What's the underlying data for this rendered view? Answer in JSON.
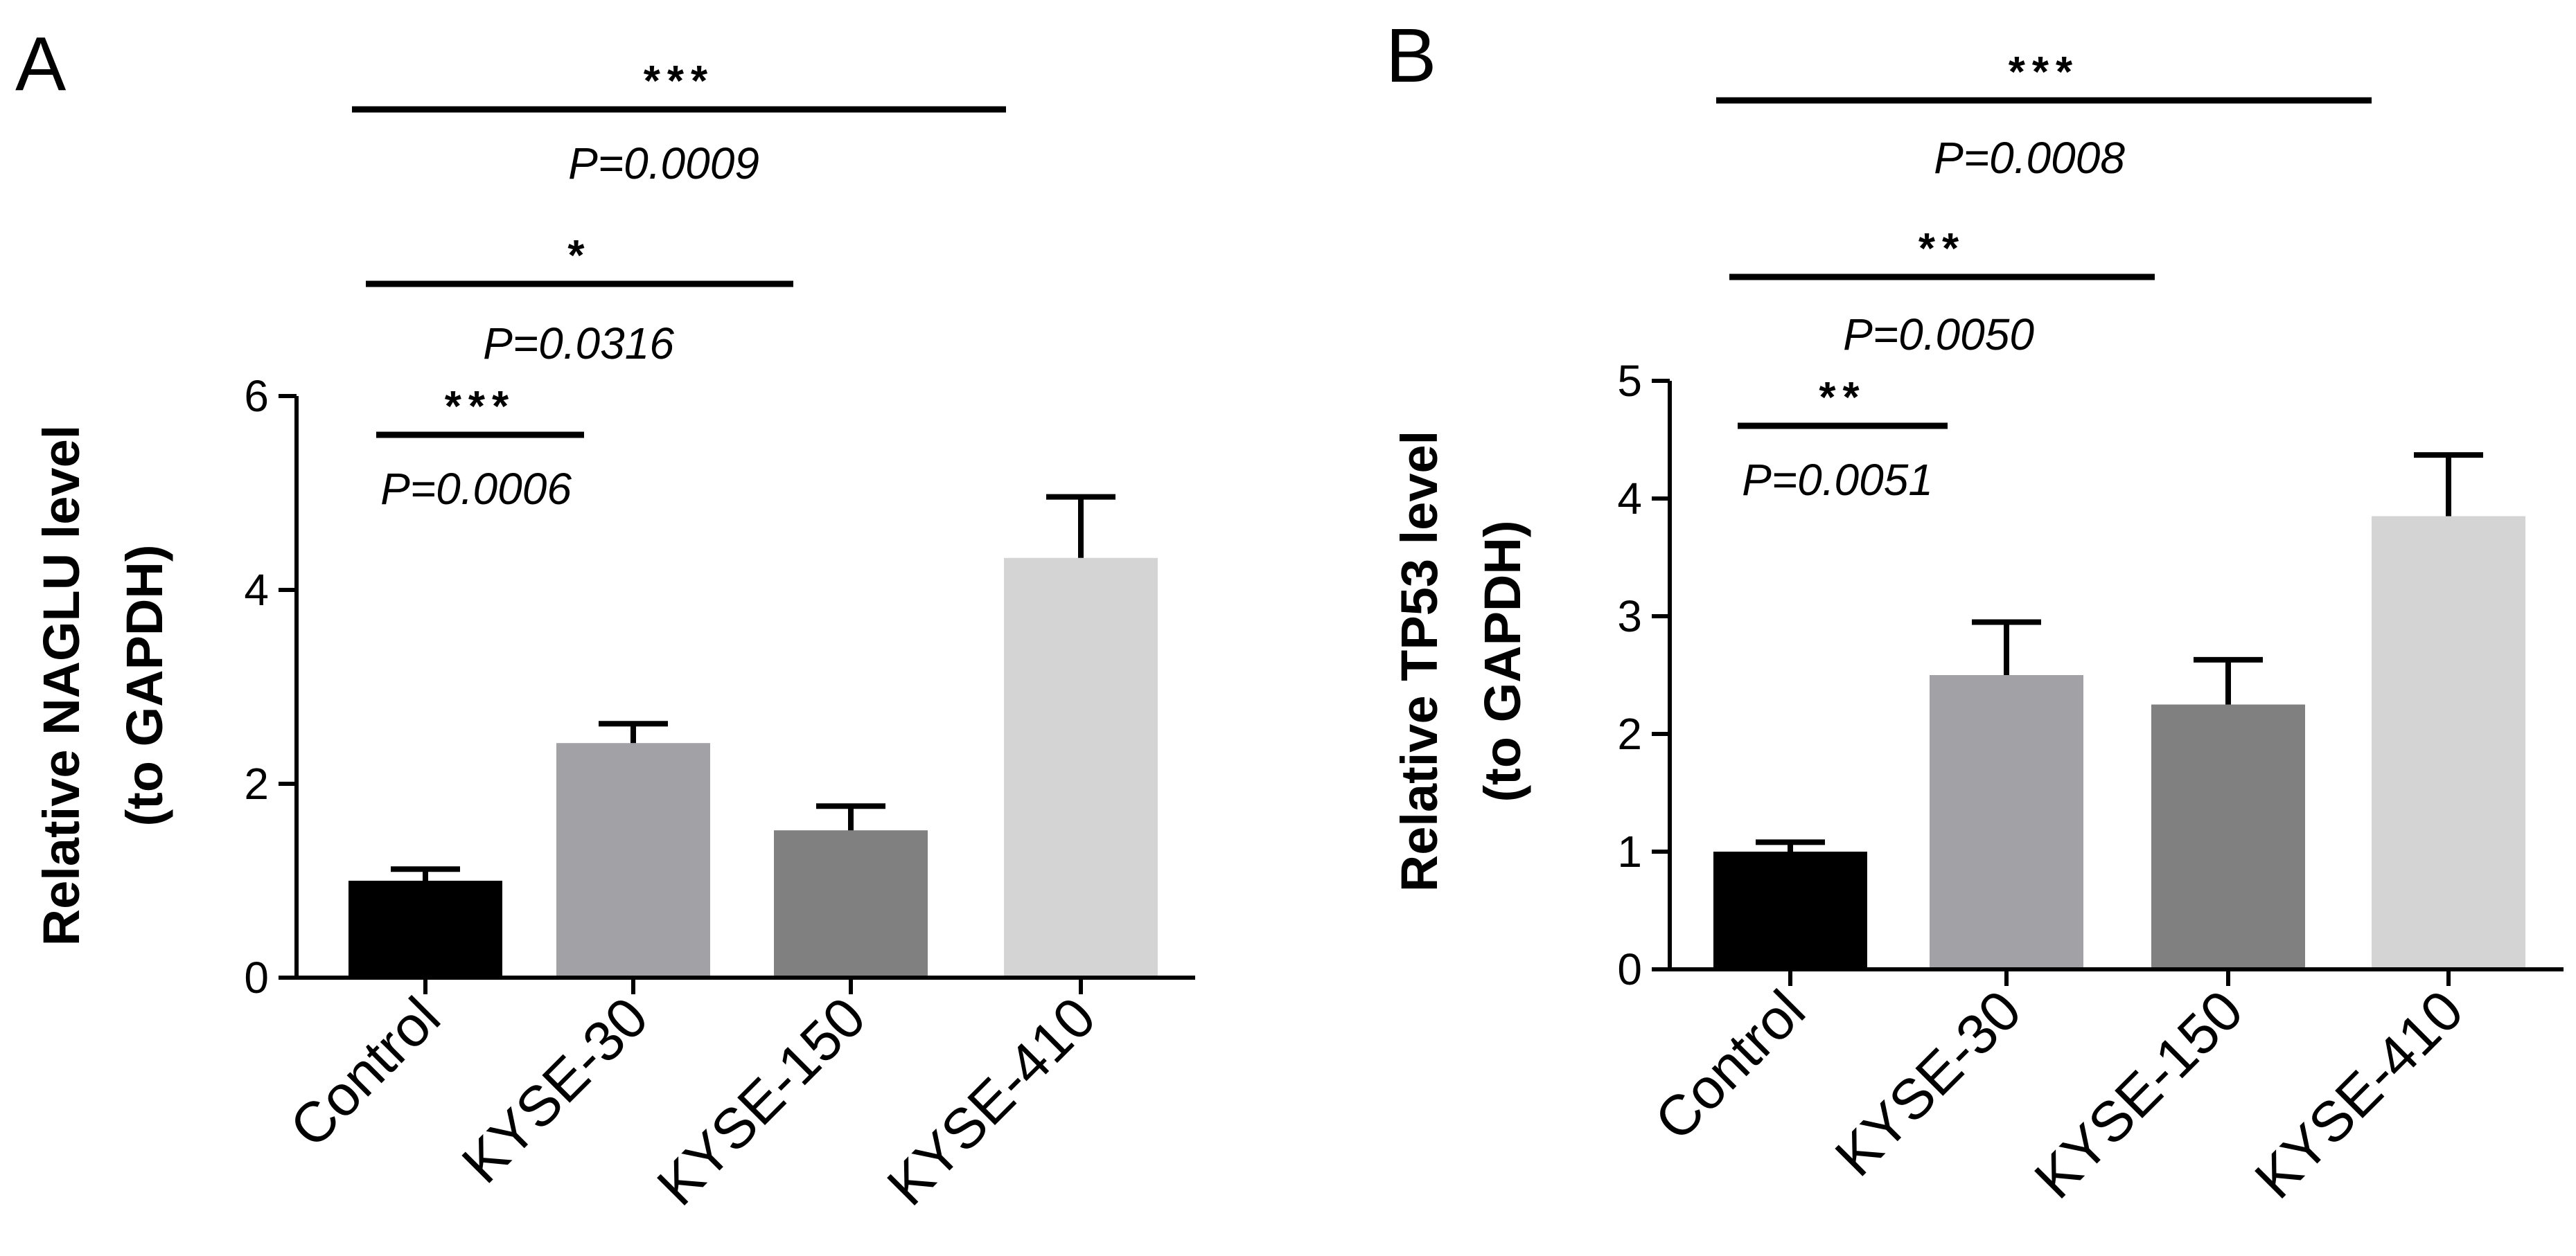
{
  "chart_data": [
    {
      "panel": "A",
      "type": "bar",
      "categories": [
        "Control",
        "KYSE-30",
        "KYSE-150",
        "KYSE-410"
      ],
      "values": [
        1.0,
        2.42,
        1.52,
        4.33
      ],
      "errors": [
        0.12,
        0.2,
        0.25,
        0.63
      ],
      "colors": [
        "#000000",
        "#a1a1a6",
        "#808080",
        "#d4d4d4"
      ],
      "ylabel_line1": "Relative NAGLU level",
      "ylabel_line2": "(to GAPDH)",
      "ylim": [
        0,
        6
      ],
      "yticks": [
        0,
        2,
        4,
        6
      ],
      "significance": [
        {
          "from": 0,
          "to": 3,
          "stars": "***",
          "p": "P=0.0009"
        },
        {
          "from": 0,
          "to": 2,
          "stars": "*",
          "p": "P=0.0316"
        },
        {
          "from": 0,
          "to": 1,
          "stars": "***",
          "p": "P=0.0006"
        }
      ]
    },
    {
      "panel": "B",
      "type": "bar",
      "categories": [
        "Control",
        "KYSE-30",
        "KYSE-150",
        "KYSE-410"
      ],
      "values": [
        1.0,
        2.5,
        2.25,
        3.85
      ],
      "errors": [
        0.08,
        0.45,
        0.38,
        0.52
      ],
      "colors": [
        "#000000",
        "#a1a1a6",
        "#808080",
        "#d4d4d4"
      ],
      "ylabel_line1": "Relative TP53 level",
      "ylabel_line2": "(to GAPDH)",
      "ylim": [
        0,
        5
      ],
      "yticks": [
        0,
        1,
        2,
        3,
        4,
        5
      ],
      "significance": [
        {
          "from": 0,
          "to": 3,
          "stars": "***",
          "p": "P=0.0008"
        },
        {
          "from": 0,
          "to": 2,
          "stars": "**",
          "p": "P=0.0050"
        },
        {
          "from": 0,
          "to": 1,
          "stars": "**",
          "p": "P=0.0051"
        }
      ]
    }
  ]
}
